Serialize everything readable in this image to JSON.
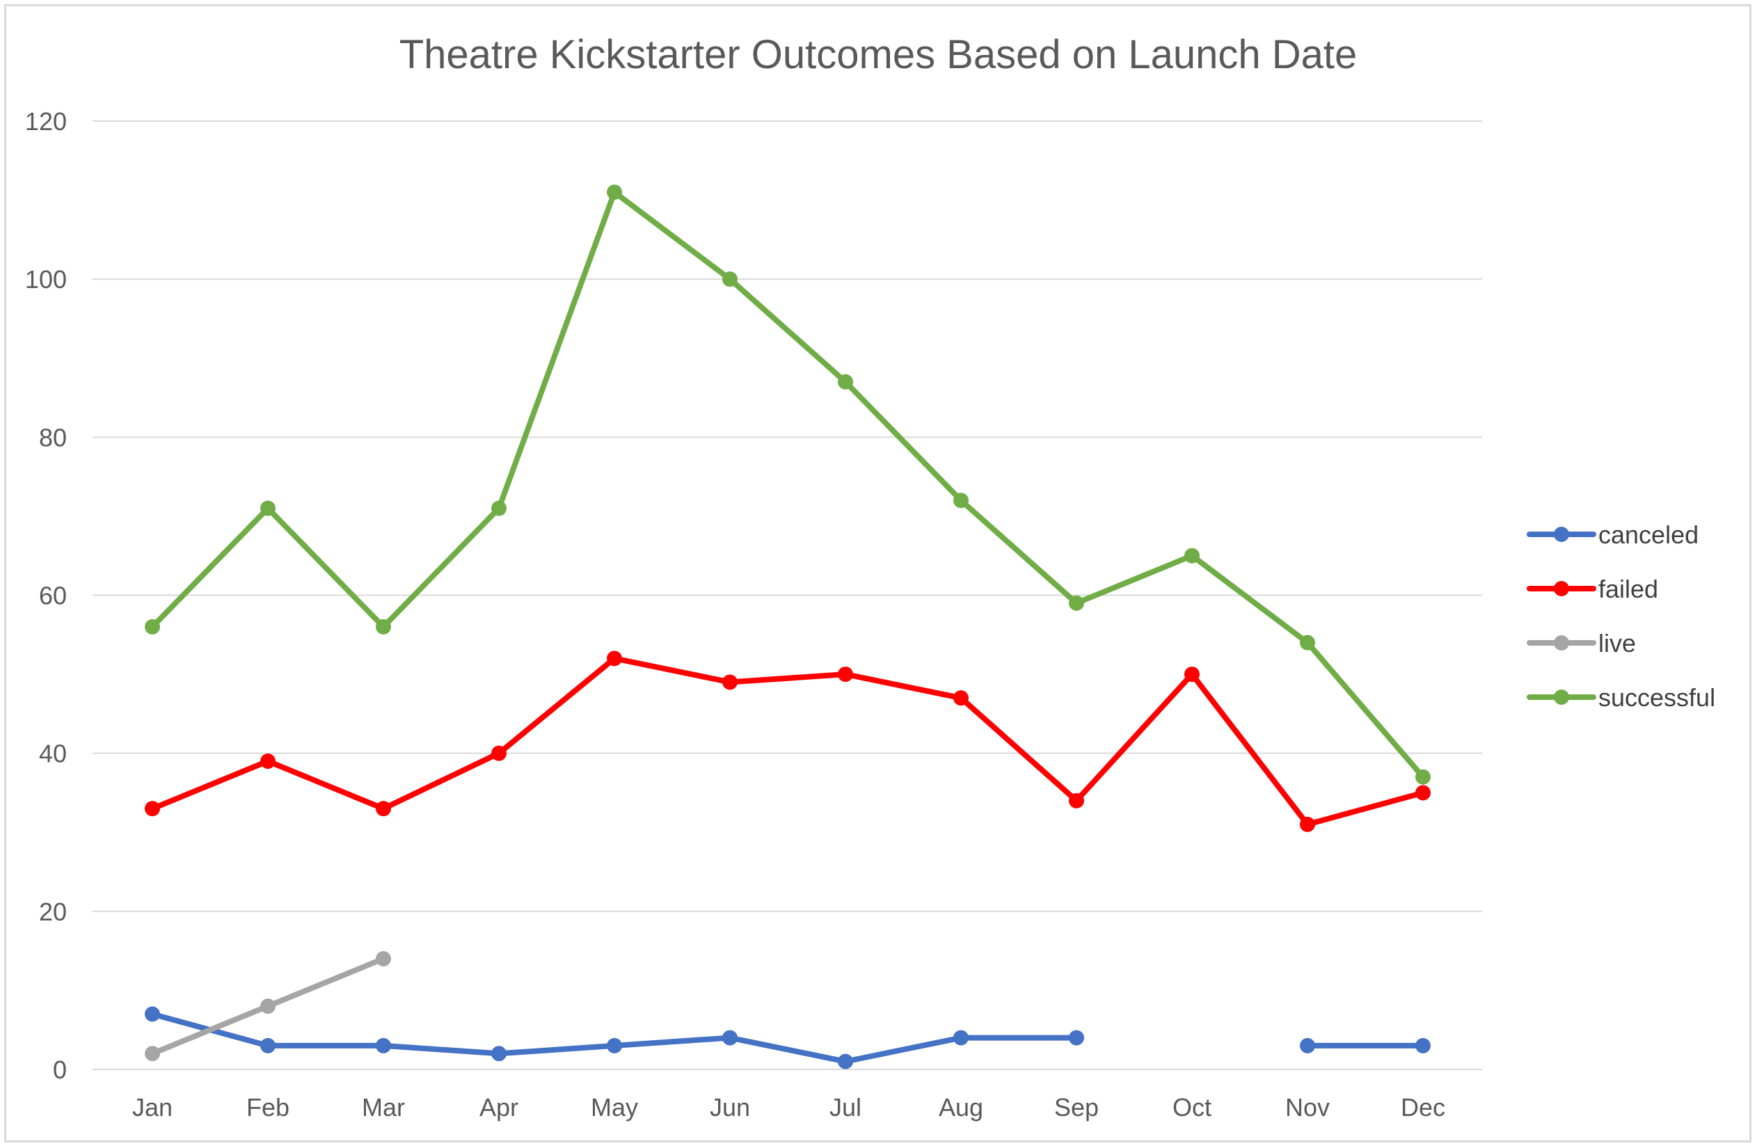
{
  "chart_data": {
    "type": "line",
    "title": "Theatre Kickstarter Outcomes Based on Launch Date",
    "xlabel": "",
    "ylabel": "",
    "categories": [
      "Jan",
      "Feb",
      "Mar",
      "Apr",
      "May",
      "Jun",
      "Jul",
      "Aug",
      "Sep",
      "Oct",
      "Nov",
      "Dec"
    ],
    "ylim": [
      0,
      120
    ],
    "yticks": [
      0,
      20,
      40,
      60,
      80,
      100,
      120
    ],
    "grid": true,
    "legend_position": "right",
    "series": [
      {
        "name": "canceled",
        "color": "#4472C4",
        "values": [
          7,
          3,
          3,
          2,
          3,
          4,
          1,
          4,
          4,
          null,
          3,
          3
        ]
      },
      {
        "name": "failed",
        "color": "#FF0000",
        "values": [
          33,
          39,
          33,
          40,
          52,
          49,
          50,
          47,
          34,
          50,
          31,
          35
        ]
      },
      {
        "name": "live",
        "color": "#A5A5A5",
        "values": [
          2,
          8,
          14,
          null,
          null,
          null,
          null,
          null,
          null,
          null,
          null,
          null
        ]
      },
      {
        "name": "successful",
        "color": "#70AD47",
        "values": [
          56,
          71,
          56,
          71,
          111,
          100,
          87,
          72,
          59,
          65,
          54,
          37
        ]
      }
    ]
  }
}
